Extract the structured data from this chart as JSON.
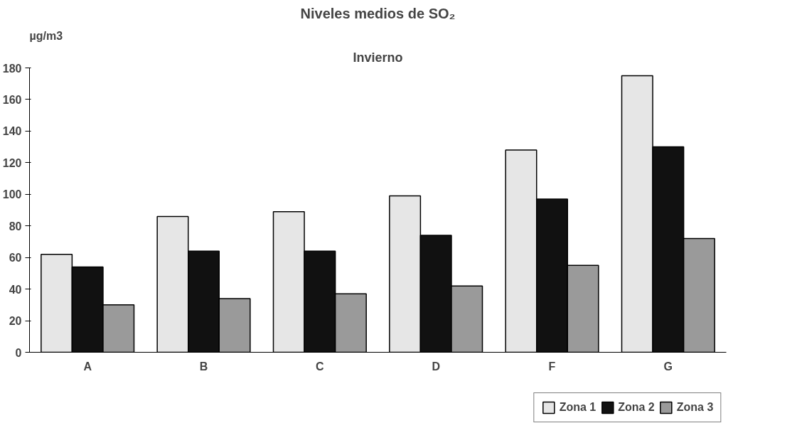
{
  "chart_data": {
    "type": "bar",
    "title": "Niveles medios de SO₂",
    "subtitle": "Invierno",
    "ylabel": "µg/m3",
    "categories": [
      "A",
      "B",
      "C",
      "D",
      "F",
      "G"
    ],
    "series": [
      {
        "name": "Zona 1",
        "color": "#e6e6e6",
        "values": [
          62,
          86,
          89,
          99,
          128,
          175
        ]
      },
      {
        "name": "Zona 2",
        "color": "#111111",
        "values": [
          54,
          64,
          64,
          74,
          97,
          130
        ]
      },
      {
        "name": "Zona 3",
        "color": "#9a9a9a",
        "values": [
          30,
          34,
          37,
          42,
          55,
          72
        ]
      }
    ],
    "ylim": [
      0,
      180
    ],
    "yticks": [
      0,
      20,
      40,
      60,
      80,
      100,
      120,
      140,
      160,
      180
    ],
    "grid": false,
    "legend": "bottom"
  }
}
